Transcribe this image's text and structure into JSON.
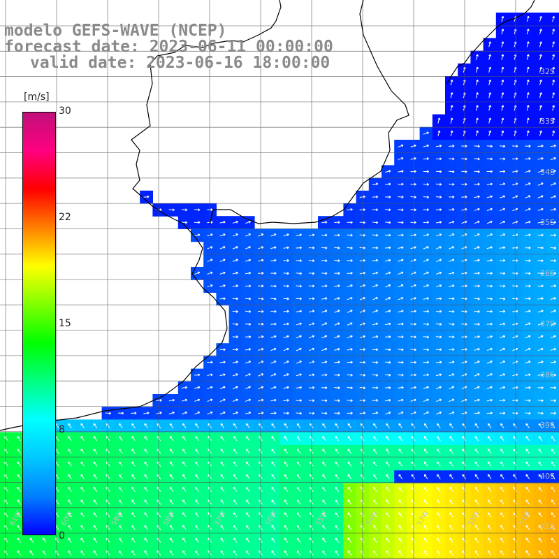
{
  "title": {
    "model": "modelo GEFS-WAVE (NCEP)",
    "forecast": "forecast date: 2023-06-11 00:00:00",
    "valid": "valid date: 2023-06-16 18:00:00"
  },
  "colorbar": {
    "unit": "[m/s]",
    "ticks": [
      "30",
      "22",
      "15",
      "8",
      "0"
    ],
    "colors": [
      "#0000ff",
      "#0080ff",
      "#00c8ff",
      "#00ffff",
      "#00ff80",
      "#00ff00",
      "#80ff00",
      "#ffff00",
      "#ff8000",
      "#ff0000",
      "#ff0080",
      "#c0107a"
    ]
  },
  "lat_labels": [
    "32S",
    "33S",
    "34S",
    "35S",
    "36S",
    "37S",
    "38S",
    "39S",
    "40S",
    "41S"
  ],
  "lon_labels": [
    "61W",
    "60W",
    "59W",
    "58W",
    "57W",
    "56W",
    "55W",
    "54W",
    "53W",
    "52W",
    "51W"
  ],
  "colors": {
    "land": "#ffffff",
    "grid": "#555555",
    "coast": "#000000",
    "arrow": "#ffffff",
    "title": "#8a8a8a"
  }
}
